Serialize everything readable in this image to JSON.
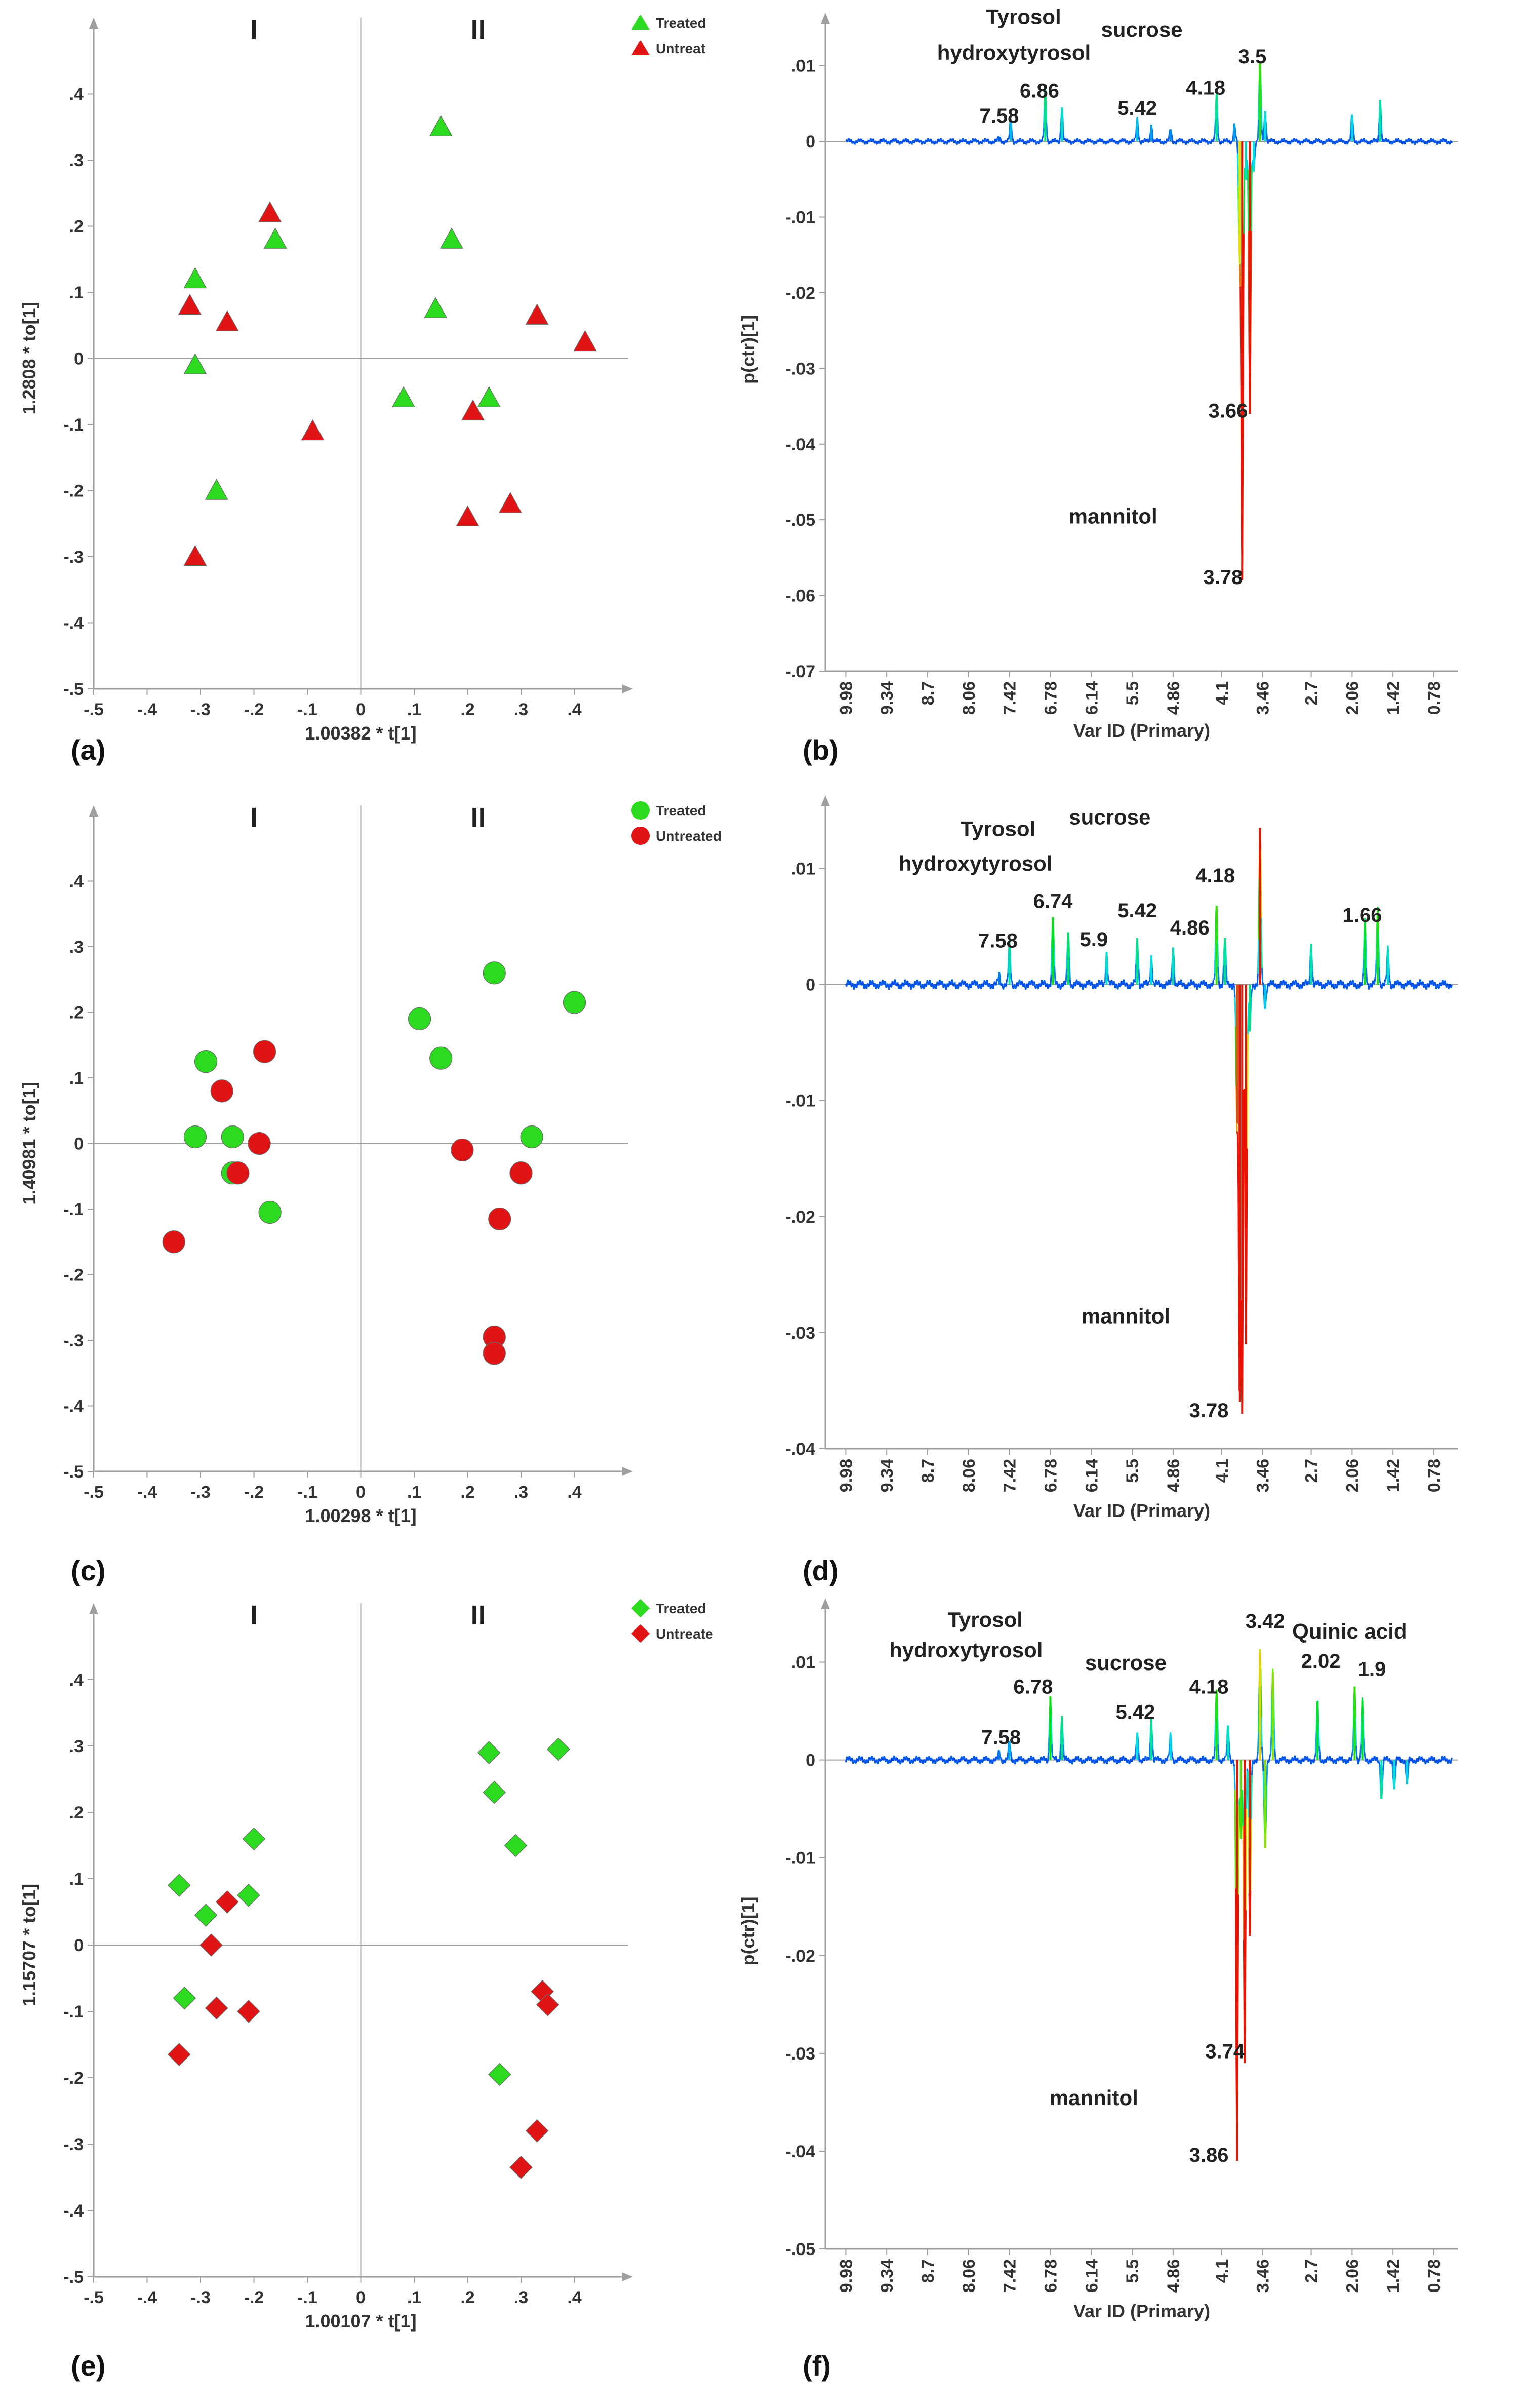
{
  "figure": {
    "panel_labels": [
      "(a)",
      "(b)",
      "(c)",
      "(d)",
      "(e)",
      "(f)"
    ]
  },
  "colors": {
    "treated": "#2cdb1f",
    "untreated": "#e01414",
    "axis": "#9e9e9e",
    "text": "#333333"
  },
  "chart_data": [
    {
      "id": "a",
      "type": "scatter",
      "xlabel": "1.00382 * t[1]",
      "ylabel": "1.2808 * to[1]",
      "xlim": [
        -0.5,
        0.5
      ],
      "ylim": [
        -0.5,
        0.5
      ],
      "xticks": [
        -0.5,
        -0.4,
        -0.3,
        -0.2,
        -0.1,
        0,
        0.1,
        0.2,
        0.3,
        0.4
      ],
      "yticks": [
        -0.5,
        -0.4,
        -0.3,
        -0.2,
        -0.1,
        0,
        0.1,
        0.2,
        0.3,
        0.4
      ],
      "quadrant_labels": [
        "I",
        "II"
      ],
      "marker": "triangle",
      "legend": [
        "Treated",
        "Untreat"
      ],
      "series": [
        {
          "name": "Treated",
          "color": "#2cdb1f",
          "points": [
            [
              -0.31,
              0.12
            ],
            [
              -0.31,
              -0.01
            ],
            [
              -0.27,
              -0.2
            ],
            [
              -0.16,
              0.18
            ],
            [
              0.15,
              0.35
            ],
            [
              0.17,
              0.18
            ],
            [
              0.14,
              0.075
            ],
            [
              0.08,
              -0.06
            ],
            [
              0.24,
              -0.06
            ]
          ]
        },
        {
          "name": "Untreated",
          "color": "#e01414",
          "points": [
            [
              -0.32,
              0.08
            ],
            [
              -0.25,
              0.055
            ],
            [
              -0.17,
              0.22
            ],
            [
              -0.09,
              -0.11
            ],
            [
              -0.31,
              -0.3
            ],
            [
              0.21,
              -0.08
            ],
            [
              0.33,
              0.065
            ],
            [
              0.42,
              0.025
            ],
            [
              0.2,
              -0.24
            ],
            [
              0.28,
              -0.22
            ]
          ]
        }
      ]
    },
    {
      "id": "b",
      "type": "line",
      "xlabel": "Var ID (Primary)",
      "ylabel": "p(ctr)[1]",
      "ylim": [
        -0.07,
        0.015
      ],
      "yticks": [
        -0.07,
        -0.06,
        -0.05,
        -0.04,
        -0.03,
        -0.02,
        -0.01,
        0,
        0.01
      ],
      "xticks": [
        "9.98",
        "9.34",
        "8.7",
        "8.06",
        "7.42",
        "6.78",
        "6.14",
        "5.5",
        "4.86",
        "4.1",
        "3.46",
        "2.7",
        "2.06",
        "1.42",
        "0.78"
      ],
      "spikes": [
        [
          7.58,
          0.0006
        ],
        [
          7.4,
          0.0028
        ],
        [
          6.86,
          0.0068
        ],
        [
          6.6,
          0.0045
        ],
        [
          5.42,
          0.003
        ],
        [
          5.2,
          0.0022
        ],
        [
          4.9,
          0.0016
        ],
        [
          4.18,
          0.0062
        ],
        [
          3.9,
          0.0022
        ],
        [
          3.82,
          -0.015
        ],
        [
          3.78,
          -0.058
        ],
        [
          3.72,
          -0.005
        ],
        [
          3.66,
          -0.036
        ],
        [
          3.6,
          -0.004
        ],
        [
          3.5,
          0.0105
        ],
        [
          3.42,
          0.004
        ],
        [
          2.06,
          0.0035
        ],
        [
          1.62,
          0.0055
        ]
      ],
      "annotations": [
        {
          "text": "Tyrosol",
          "x": 7.2,
          "y": 0.0155
        },
        {
          "text": "hydroxytyrosol",
          "x": 7.35,
          "y": 0.0108
        },
        {
          "text": "sucrose",
          "x": 5.35,
          "y": 0.0138
        },
        {
          "text": "7.58",
          "x": 7.58,
          "y": 0.0025
        },
        {
          "text": "6.86",
          "x": 6.95,
          "y": 0.0058
        },
        {
          "text": "5.42",
          "x": 5.42,
          "y": 0.0035
        },
        {
          "text": "4.18",
          "x": 4.35,
          "y": 0.0062
        },
        {
          "text": "3.5",
          "x": 3.62,
          "y": 0.0103
        },
        {
          "text": "3.66",
          "x": 4.0,
          "y": -0.0365
        },
        {
          "text": "mannitol",
          "x": 5.8,
          "y": -0.0505
        },
        {
          "text": "3.78",
          "x": 4.08,
          "y": -0.0585
        }
      ]
    },
    {
      "id": "c",
      "type": "scatter",
      "xlabel": "1.00298 * t[1]",
      "ylabel": "1.40981 * to[1]",
      "xlim": [
        -0.5,
        0.5
      ],
      "ylim": [
        -0.5,
        0.5
      ],
      "xticks": [
        -0.5,
        -0.4,
        -0.3,
        -0.2,
        -0.1,
        0,
        0.1,
        0.2,
        0.3,
        0.4
      ],
      "yticks": [
        -0.5,
        -0.4,
        -0.3,
        -0.2,
        -0.1,
        0,
        0.1,
        0.2,
        0.3,
        0.4
      ],
      "quadrant_labels": [
        "I",
        "II"
      ],
      "marker": "circle",
      "legend": [
        "Treated",
        "Untreated"
      ],
      "series": [
        {
          "name": "Treated",
          "color": "#2cdb1f",
          "points": [
            [
              -0.29,
              0.125
            ],
            [
              -0.31,
              0.01
            ],
            [
              -0.24,
              0.01
            ],
            [
              -0.24,
              -0.045
            ],
            [
              -0.17,
              -0.105
            ],
            [
              0.11,
              0.19
            ],
            [
              0.15,
              0.13
            ],
            [
              0.25,
              0.26
            ],
            [
              0.32,
              0.01
            ],
            [
              0.4,
              0.215
            ]
          ]
        },
        {
          "name": "Untreated",
          "color": "#e01414",
          "points": [
            [
              -0.35,
              -0.15
            ],
            [
              -0.26,
              0.08
            ],
            [
              -0.23,
              -0.045
            ],
            [
              -0.19,
              0.0
            ],
            [
              -0.18,
              0.14
            ],
            [
              0.19,
              -0.01
            ],
            [
              0.3,
              -0.045
            ],
            [
              0.26,
              -0.115
            ],
            [
              0.25,
              -0.295
            ],
            [
              0.25,
              -0.32
            ]
          ]
        }
      ]
    },
    {
      "id": "d",
      "type": "line",
      "xlabel": "Var ID (Primary)",
      "ylabel": "",
      "ylim": [
        -0.04,
        0.015
      ],
      "yticks": [
        -0.04,
        -0.03,
        -0.02,
        -0.01,
        0,
        0.01
      ],
      "xticks": [
        "9.98",
        "9.34",
        "8.7",
        "8.06",
        "7.42",
        "6.78",
        "6.14",
        "5.5",
        "4.86",
        "4.1",
        "3.46",
        "2.7",
        "2.06",
        "1.42",
        "0.78"
      ],
      "spikes": [
        [
          7.58,
          0.0008
        ],
        [
          7.42,
          0.0035
        ],
        [
          6.74,
          0.0058
        ],
        [
          6.5,
          0.0045
        ],
        [
          5.9,
          0.0028
        ],
        [
          5.42,
          0.004
        ],
        [
          5.2,
          0.0025
        ],
        [
          4.86,
          0.0032
        ],
        [
          4.18,
          0.0068
        ],
        [
          4.05,
          0.004
        ],
        [
          3.86,
          -0.012
        ],
        [
          3.82,
          -0.035
        ],
        [
          3.78,
          -0.037
        ],
        [
          3.72,
          -0.031
        ],
        [
          3.66,
          -0.004
        ],
        [
          3.5,
          0.0135
        ],
        [
          3.42,
          -0.002
        ],
        [
          2.7,
          0.0035
        ],
        [
          1.86,
          0.0055
        ],
        [
          1.66,
          0.0065
        ],
        [
          1.5,
          0.003
        ]
      ],
      "annotations": [
        {
          "text": "Tyrosol",
          "x": 7.6,
          "y": 0.0128
        },
        {
          "text": "hydroxytyrosol",
          "x": 7.95,
          "y": 0.0098
        },
        {
          "text": "sucrose",
          "x": 5.85,
          "y": 0.0138
        },
        {
          "text": "7.58",
          "x": 7.6,
          "y": 0.0032
        },
        {
          "text": "6.74",
          "x": 6.74,
          "y": 0.0066
        },
        {
          "text": "5.9",
          "x": 6.1,
          "y": 0.0033
        },
        {
          "text": "5.42",
          "x": 5.42,
          "y": 0.0058
        },
        {
          "text": "4.18",
          "x": 4.2,
          "y": 0.0088
        },
        {
          "text": "4.86",
          "x": 4.6,
          "y": 0.0043
        },
        {
          "text": "1.66",
          "x": 1.9,
          "y": 0.0054
        },
        {
          "text": "mannitol",
          "x": 5.6,
          "y": -0.0292
        },
        {
          "text": "3.78",
          "x": 4.3,
          "y": -0.0373
        }
      ]
    },
    {
      "id": "e",
      "type": "scatter",
      "xlabel": "1.00107 * t[1]",
      "ylabel": "1.15707 * to[1]",
      "xlim": [
        -0.5,
        0.5
      ],
      "ylim": [
        -0.5,
        0.5
      ],
      "xticks": [
        -0.5,
        -0.4,
        -0.3,
        -0.2,
        -0.1,
        0,
        0.1,
        0.2,
        0.3,
        0.4
      ],
      "yticks": [
        -0.5,
        -0.4,
        -0.3,
        -0.2,
        -0.1,
        0,
        0.1,
        0.2,
        0.3,
        0.4
      ],
      "quadrant_labels": [
        "I",
        "II"
      ],
      "marker": "diamond",
      "legend": [
        "Treated",
        "Untreate"
      ],
      "series": [
        {
          "name": "Treated",
          "color": "#2cdb1f",
          "points": [
            [
              -0.34,
              0.09
            ],
            [
              -0.29,
              0.045
            ],
            [
              -0.21,
              0.075
            ],
            [
              -0.2,
              0.16
            ],
            [
              -0.33,
              -0.08
            ],
            [
              0.24,
              0.29
            ],
            [
              0.25,
              0.23
            ],
            [
              0.29,
              0.15
            ],
            [
              0.37,
              0.295
            ],
            [
              0.26,
              -0.195
            ]
          ]
        },
        {
          "name": "Untreated",
          "color": "#e01414",
          "points": [
            [
              -0.25,
              0.065
            ],
            [
              -0.28,
              0.0
            ],
            [
              -0.27,
              -0.095
            ],
            [
              -0.21,
              -0.1
            ],
            [
              -0.34,
              -0.165
            ],
            [
              0.34,
              -0.07
            ],
            [
              0.35,
              -0.09
            ],
            [
              0.33,
              -0.28
            ],
            [
              0.3,
              -0.335
            ]
          ]
        }
      ]
    },
    {
      "id": "f",
      "type": "line",
      "xlabel": "Var ID (Primary)",
      "ylabel": "p(ctr)[1]",
      "ylim": [
        -0.05,
        0.015
      ],
      "yticks": [
        -0.05,
        -0.04,
        -0.03,
        -0.02,
        -0.01,
        0,
        0.01
      ],
      "xticks": [
        "9.98",
        "9.34",
        "8.7",
        "8.06",
        "7.42",
        "6.78",
        "6.14",
        "5.5",
        "4.86",
        "4.1",
        "3.46",
        "2.7",
        "2.06",
        "1.42",
        "0.78"
      ],
      "spikes": [
        [
          7.58,
          0.0008
        ],
        [
          7.42,
          0.0018
        ],
        [
          6.78,
          0.0065
        ],
        [
          6.6,
          0.0045
        ],
        [
          5.42,
          0.0028
        ],
        [
          5.2,
          0.0042
        ],
        [
          4.9,
          0.0025
        ],
        [
          4.18,
          0.0072
        ],
        [
          4.0,
          0.0035
        ],
        [
          3.86,
          -0.041
        ],
        [
          3.8,
          -0.008
        ],
        [
          3.74,
          -0.031
        ],
        [
          3.66,
          -0.018
        ],
        [
          3.5,
          0.011
        ],
        [
          3.42,
          -0.009
        ],
        [
          3.3,
          0.009
        ],
        [
          2.6,
          0.006
        ],
        [
          2.02,
          0.0075
        ],
        [
          1.9,
          0.006
        ],
        [
          1.6,
          -0.004
        ],
        [
          1.4,
          -0.003
        ],
        [
          1.2,
          -0.0025
        ]
      ],
      "annotations": [
        {
          "text": "Tyrosol",
          "x": 7.8,
          "y": 0.0136
        },
        {
          "text": "hydroxytyrosol",
          "x": 8.1,
          "y": 0.0105
        },
        {
          "text": "sucrose",
          "x": 5.6,
          "y": 0.0092
        },
        {
          "text": "6.78",
          "x": 7.05,
          "y": 0.0068
        },
        {
          "text": "5.42",
          "x": 5.45,
          "y": 0.0042
        },
        {
          "text": "4.18",
          "x": 4.3,
          "y": 0.0068
        },
        {
          "text": "7.58",
          "x": 7.55,
          "y": 0.0016
        },
        {
          "text": "3.42",
          "x": 3.42,
          "y": 0.0135
        },
        {
          "text": "Quinic acid",
          "x": 2.1,
          "y": 0.0124
        },
        {
          "text": "2.02",
          "x": 2.55,
          "y": 0.0094
        },
        {
          "text": "1.9",
          "x": 1.75,
          "y": 0.0086
        },
        {
          "text": "3.74",
          "x": 4.05,
          "y": -0.0305
        },
        {
          "text": "mannitol",
          "x": 6.1,
          "y": -0.0353
        },
        {
          "text": "3.86",
          "x": 4.3,
          "y": -0.0411
        }
      ]
    }
  ]
}
